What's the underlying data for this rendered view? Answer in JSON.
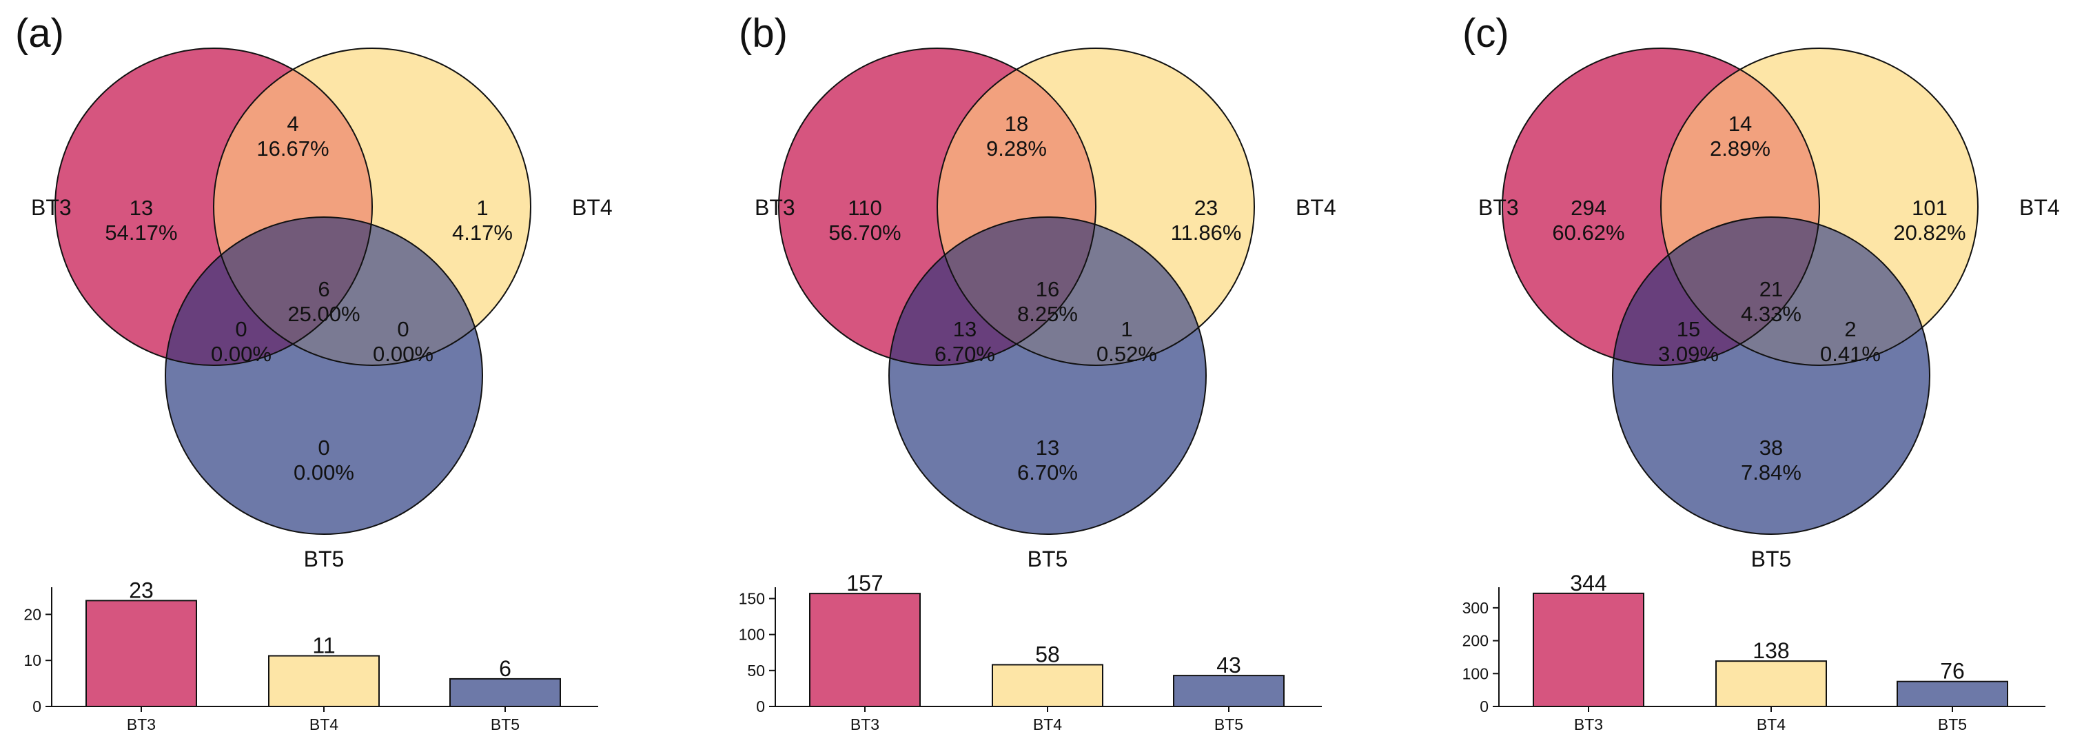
{
  "chart_data": [
    {
      "type": "venn",
      "panel_label": "(a)",
      "sets": [
        "BT3",
        "BT4",
        "BT5"
      ],
      "regions": {
        "only_a": {
          "count": "13",
          "percent": "54.17%"
        },
        "only_b": {
          "count": "1",
          "percent": "4.17%"
        },
        "only_c": {
          "count": "0",
          "percent": "0.00%"
        },
        "ab": {
          "count": "4",
          "percent": "16.67%"
        },
        "ac": {
          "count": "0",
          "percent": "0.00%"
        },
        "bc": {
          "count": "0",
          "percent": "0.00%"
        },
        "abc": {
          "count": "6",
          "percent": "25.00%"
        }
      },
      "bar": {
        "type": "bar",
        "categories": [
          "BT3",
          "BT4",
          "BT5"
        ],
        "values": [
          23,
          11,
          6
        ],
        "value_labels": [
          "23",
          "11",
          "6"
        ],
        "yticks": [
          0,
          10,
          20
        ],
        "ylim": [
          0,
          25
        ]
      }
    },
    {
      "type": "venn",
      "panel_label": "(b)",
      "sets": [
        "BT3",
        "BT4",
        "BT5"
      ],
      "regions": {
        "only_a": {
          "count": "110",
          "percent": "56.70%"
        },
        "only_b": {
          "count": "23",
          "percent": "11.86%"
        },
        "only_c": {
          "count": "13",
          "percent": "6.70%"
        },
        "ab": {
          "count": "18",
          "percent": "9.28%"
        },
        "ac": {
          "count": "13",
          "percent": "6.70%"
        },
        "bc": {
          "count": "1",
          "percent": "0.52%"
        },
        "abc": {
          "count": "16",
          "percent": "8.25%"
        }
      },
      "bar": {
        "type": "bar",
        "categories": [
          "BT3",
          "BT4",
          "BT5"
        ],
        "values": [
          157,
          58,
          43
        ],
        "value_labels": [
          "157",
          "58",
          "43"
        ],
        "yticks": [
          0,
          50,
          100,
          150
        ],
        "ylim": [
          0,
          160
        ]
      }
    },
    {
      "type": "venn",
      "panel_label": "(c)",
      "sets": [
        "BT3",
        "BT4",
        "BT5"
      ],
      "regions": {
        "only_a": {
          "count": "294",
          "percent": "60.62%"
        },
        "only_b": {
          "count": "101",
          "percent": "20.82%"
        },
        "only_c": {
          "count": "38",
          "percent": "7.84%"
        },
        "ab": {
          "count": "14",
          "percent": "2.89%"
        },
        "ac": {
          "count": "15",
          "percent": "3.09%"
        },
        "bc": {
          "count": "2",
          "percent": "0.41%"
        },
        "abc": {
          "count": "21",
          "percent": "4.33%"
        }
      },
      "bar": {
        "type": "bar",
        "categories": [
          "BT3",
          "BT4",
          "BT5"
        ],
        "values": [
          344,
          138,
          76
        ],
        "value_labels": [
          "344",
          "138",
          "76"
        ],
        "yticks": [
          0,
          100,
          200,
          300
        ],
        "ylim": [
          0,
          350
        ]
      }
    }
  ],
  "colors": {
    "set_a": "#d6557f",
    "set_b": "#fde5a6",
    "set_c": "#6d79a8",
    "region_ab": "#f2a17e",
    "region_ac": "#683f7c",
    "region_bc": "#7a7a93",
    "region_abc": "#725a79",
    "outline": "#111111"
  }
}
